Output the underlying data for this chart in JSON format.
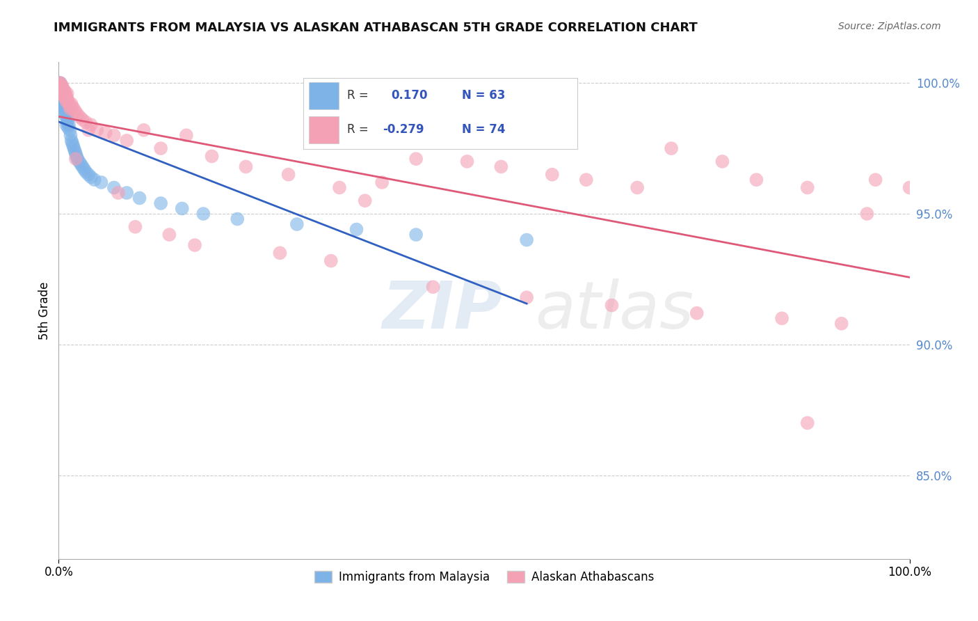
{
  "title": "IMMIGRANTS FROM MALAYSIA VS ALASKAN ATHABASCAN 5TH GRADE CORRELATION CHART",
  "source": "Source: ZipAtlas.com",
  "ylabel": "5th Grade",
  "ylabel_right_ticks": [
    "100.0%",
    "95.0%",
    "90.0%",
    "85.0%"
  ],
  "ylabel_right_values": [
    1.0,
    0.95,
    0.9,
    0.85
  ],
  "xmin": 0.0,
  "xmax": 1.0,
  "ymin": 0.818,
  "ymax": 1.008,
  "blue_R": 0.17,
  "blue_N": 63,
  "pink_R": -0.279,
  "pink_N": 74,
  "blue_color": "#7eb3e8",
  "pink_color": "#f4a0b5",
  "blue_line_color": "#3060c0",
  "pink_line_color": "#e05878",
  "legend_label_blue": "Immigrants from Malaysia",
  "legend_label_pink": "Alaskan Athabascans",
  "grid_color": "#cccccc",
  "background_color": "#ffffff",
  "watermark_zip": "ZIP",
  "watermark_atlas": "atlas",
  "blue_points_x": [
    0.001,
    0.001,
    0.001,
    0.002,
    0.002,
    0.002,
    0.003,
    0.003,
    0.003,
    0.003,
    0.004,
    0.004,
    0.004,
    0.005,
    0.005,
    0.005,
    0.005,
    0.006,
    0.006,
    0.006,
    0.007,
    0.007,
    0.007,
    0.008,
    0.008,
    0.009,
    0.009,
    0.009,
    0.01,
    0.01,
    0.011,
    0.011,
    0.012,
    0.013,
    0.014,
    0.015,
    0.016,
    0.017,
    0.018,
    0.019,
    0.02,
    0.021,
    0.022,
    0.024,
    0.026,
    0.028,
    0.03,
    0.032,
    0.035,
    0.038,
    0.042,
    0.05,
    0.065,
    0.08,
    0.095,
    0.12,
    0.145,
    0.17,
    0.21,
    0.28,
    0.35,
    0.42,
    0.55
  ],
  "blue_points_y": [
    1.0,
    0.999,
    0.998,
    1.0,
    0.999,
    0.997,
    0.999,
    0.998,
    0.997,
    0.995,
    0.998,
    0.996,
    0.994,
    0.997,
    0.995,
    0.993,
    0.991,
    0.996,
    0.993,
    0.99,
    0.994,
    0.991,
    0.988,
    0.992,
    0.989,
    0.99,
    0.987,
    0.984,
    0.988,
    0.985,
    0.986,
    0.983,
    0.984,
    0.982,
    0.98,
    0.978,
    0.977,
    0.976,
    0.975,
    0.974,
    0.973,
    0.972,
    0.971,
    0.97,
    0.969,
    0.968,
    0.967,
    0.966,
    0.965,
    0.964,
    0.963,
    0.962,
    0.96,
    0.958,
    0.956,
    0.954,
    0.952,
    0.95,
    0.948,
    0.946,
    0.944,
    0.942,
    0.94
  ],
  "pink_points_x": [
    0.001,
    0.001,
    0.002,
    0.002,
    0.003,
    0.003,
    0.004,
    0.004,
    0.005,
    0.005,
    0.006,
    0.006,
    0.007,
    0.007,
    0.008,
    0.008,
    0.009,
    0.009,
    0.01,
    0.01,
    0.011,
    0.012,
    0.013,
    0.014,
    0.015,
    0.016,
    0.018,
    0.02,
    0.022,
    0.025,
    0.028,
    0.032,
    0.038,
    0.045,
    0.055,
    0.065,
    0.08,
    0.1,
    0.12,
    0.15,
    0.18,
    0.22,
    0.27,
    0.33,
    0.38,
    0.42,
    0.48,
    0.52,
    0.58,
    0.62,
    0.68,
    0.72,
    0.78,
    0.82,
    0.88,
    0.02,
    0.035,
    0.07,
    0.09,
    0.13,
    0.16,
    0.26,
    0.32,
    0.36,
    0.44,
    0.55,
    0.65,
    0.75,
    0.85,
    0.92,
    0.96,
    1.0,
    0.95,
    0.88
  ],
  "pink_points_y": [
    1.0,
    0.999,
    1.0,
    0.998,
    0.999,
    0.997,
    0.999,
    0.997,
    0.998,
    0.996,
    0.997,
    0.995,
    0.997,
    0.995,
    0.996,
    0.994,
    0.995,
    0.993,
    0.996,
    0.994,
    0.993,
    0.992,
    0.991,
    0.99,
    0.992,
    0.991,
    0.99,
    0.989,
    0.988,
    0.987,
    0.986,
    0.985,
    0.984,
    0.982,
    0.981,
    0.98,
    0.978,
    0.982,
    0.975,
    0.98,
    0.972,
    0.968,
    0.965,
    0.96,
    0.962,
    0.971,
    0.97,
    0.968,
    0.965,
    0.963,
    0.96,
    0.975,
    0.97,
    0.963,
    0.96,
    0.971,
    0.982,
    0.958,
    0.945,
    0.942,
    0.938,
    0.935,
    0.932,
    0.955,
    0.922,
    0.918,
    0.915,
    0.912,
    0.91,
    0.908,
    0.963,
    0.96,
    0.95,
    0.87
  ]
}
